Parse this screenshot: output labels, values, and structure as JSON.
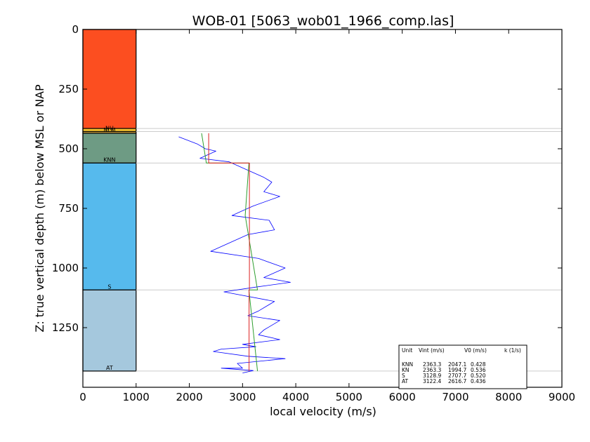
{
  "chart_data": {
    "type": "line",
    "title": "WOB-01 [5063_wob01_1966_comp.las]",
    "xlabel": "local velocity (m/s)",
    "ylabel": "Z: true vertical depth (m) below MSL or NAP",
    "xlim": [
      0,
      9000
    ],
    "ylim": [
      1500,
      0
    ],
    "x_ticks": [
      "0",
      "1000",
      "2000",
      "3000",
      "4000",
      "5000",
      "6000",
      "7000",
      "8000",
      "9000"
    ],
    "y_ticks": [
      "0",
      "250",
      "500",
      "750",
      "1000",
      "1250"
    ],
    "y_tick_values": [
      0,
      250,
      500,
      750,
      1000,
      1250
    ],
    "strat_column": {
      "x_range": [
        0,
        1000
      ],
      "units": [
        {
          "label": "",
          "top": 0,
          "base": 415,
          "color": "#fc4e20"
        },
        {
          "label": "NU",
          "top": 415,
          "base": 428,
          "color": "#f2c12e"
        },
        {
          "label": "NLM",
          "top": 428,
          "base": 435,
          "color": "#e8b54a"
        },
        {
          "label": "KNN",
          "top": 435,
          "base": 560,
          "color": "#6e9b84"
        },
        {
          "label": "S",
          "top": 560,
          "base": 1092,
          "color": "#56baed"
        },
        {
          "label": "AT",
          "top": 1092,
          "base": 1432,
          "color": "#a5c8dd"
        }
      ]
    },
    "boundaries": [
      415,
      428,
      560,
      1092,
      1432
    ],
    "series": [
      {
        "color": "#0000ff",
        "x": [
          1800,
          2150,
          2300,
          2500,
          2200,
          2750,
          3000,
          3400,
          3550,
          3400,
          3700,
          3200,
          3000,
          2800,
          3500,
          3600,
          3100,
          2700,
          2400,
          3300,
          3800,
          3400,
          3900,
          3250,
          2650,
          3600,
          3300,
          3100,
          3700,
          3400,
          3300,
          3700,
          3000,
          3250,
          2600,
          2450,
          3100,
          3800,
          3350,
          2900,
          3000,
          2600,
          3200,
          3000
        ],
        "y": [
          450,
          480,
          500,
          510,
          540,
          555,
          580,
          620,
          640,
          680,
          700,
          740,
          760,
          780,
          800,
          840,
          860,
          900,
          930,
          960,
          1000,
          1040,
          1060,
          1080,
          1100,
          1140,
          1180,
          1200,
          1220,
          1260,
          1280,
          1300,
          1320,
          1330,
          1340,
          1350,
          1370,
          1380,
          1390,
          1400,
          1420,
          1420,
          1430,
          1440
        ]
      },
      {
        "name": "KNN",
        "color": "#2e9e2e",
        "x": [
          2230,
          2320,
          3120,
          3050,
          3280,
          3120,
          3280
        ],
        "y": [
          435,
          560,
          560,
          780,
          1092,
          1092,
          1432
        ]
      },
      {
        "color": "#dd2222",
        "x": [
          2363,
          2363,
          3129,
          3129,
          3122,
          3122
        ],
        "y": [
          435,
          560,
          560,
          1092,
          1092,
          1432
        ]
      }
    ],
    "legend": {
      "placement": "bottom-right",
      "header": [
        "Unit",
        "Vint (m/s)",
        "V0 (m/s)",
        "k (1/s)"
      ],
      "rows": [
        [
          "KNN",
          "2363.3",
          "2047.1",
          "0.428"
        ],
        [
          "KN",
          "2363.3",
          "1994.7",
          "0.536"
        ],
        [
          "S",
          "3128.9",
          "2707.7",
          "0.520"
        ],
        [
          "AT",
          "3122.4",
          "2616.7",
          "0.436"
        ]
      ]
    }
  }
}
